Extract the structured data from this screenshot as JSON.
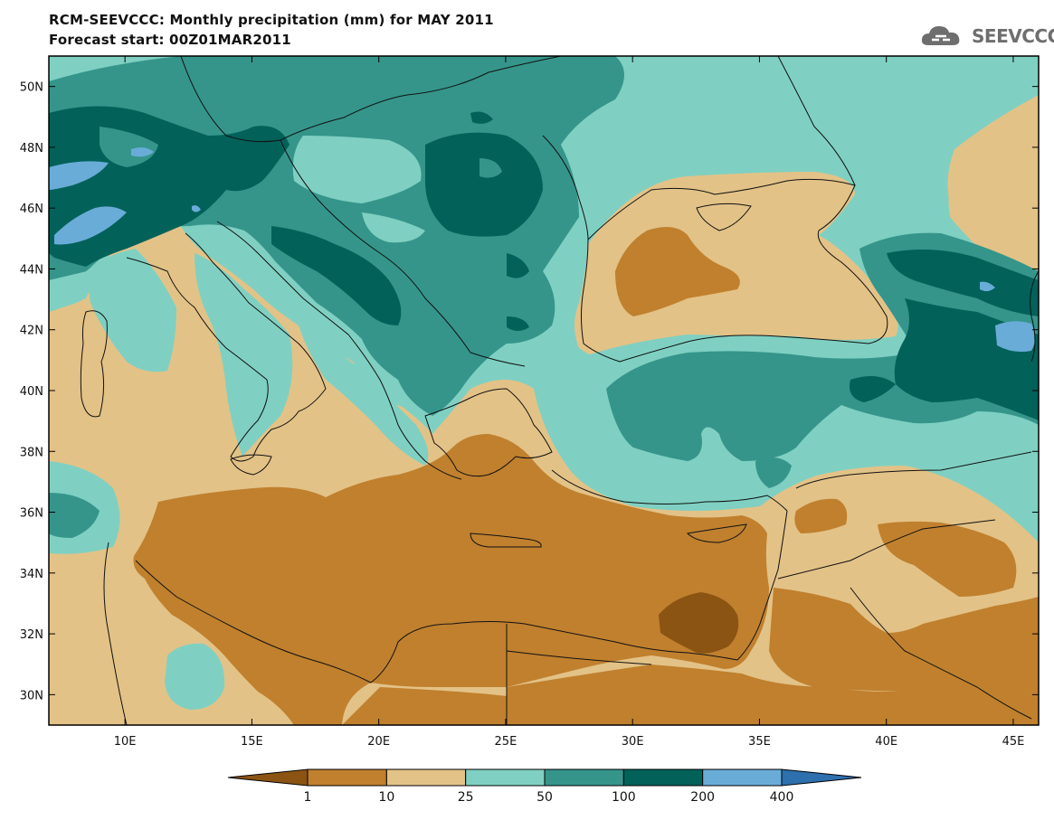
{
  "title": {
    "line1": "RCM-SEEVCCC: Monthly precipitation (mm) for MAY 2011",
    "line2": "Forecast start: 00Z01MAR2011"
  },
  "logo": {
    "text": "SEEVCCC"
  },
  "map": {
    "lat_ticks": [
      {
        "value": 50,
        "label": "50N"
      },
      {
        "value": 48,
        "label": "48N"
      },
      {
        "value": 46,
        "label": "46N"
      },
      {
        "value": 44,
        "label": "44N"
      },
      {
        "value": 42,
        "label": "42N"
      },
      {
        "value": 40,
        "label": "40N"
      },
      {
        "value": 38,
        "label": "38N"
      },
      {
        "value": 36,
        "label": "36N"
      },
      {
        "value": 34,
        "label": "34N"
      },
      {
        "value": 32,
        "label": "32N"
      },
      {
        "value": 30,
        "label": "30N"
      }
    ],
    "lon_ticks": [
      {
        "value": 10,
        "label": "10E"
      },
      {
        "value": 15,
        "label": "15E"
      },
      {
        "value": 20,
        "label": "20E"
      },
      {
        "value": 25,
        "label": "25E"
      },
      {
        "value": 30,
        "label": "30E"
      },
      {
        "value": 35,
        "label": "35E"
      },
      {
        "value": 40,
        "label": "40E"
      },
      {
        "value": 45,
        "label": "45E"
      }
    ],
    "lon_range": [
      7,
      46
    ],
    "lat_range": [
      29,
      51
    ]
  },
  "legend": {
    "levels": [
      "1",
      "10",
      "25",
      "50",
      "100",
      "200",
      "400"
    ],
    "colors": [
      "#8b5412",
      "#c0802e",
      "#e3c287",
      "#7fd0c2",
      "#35958b",
      "#02625a",
      "#6aacd8",
      "#2e6fae"
    ]
  }
}
